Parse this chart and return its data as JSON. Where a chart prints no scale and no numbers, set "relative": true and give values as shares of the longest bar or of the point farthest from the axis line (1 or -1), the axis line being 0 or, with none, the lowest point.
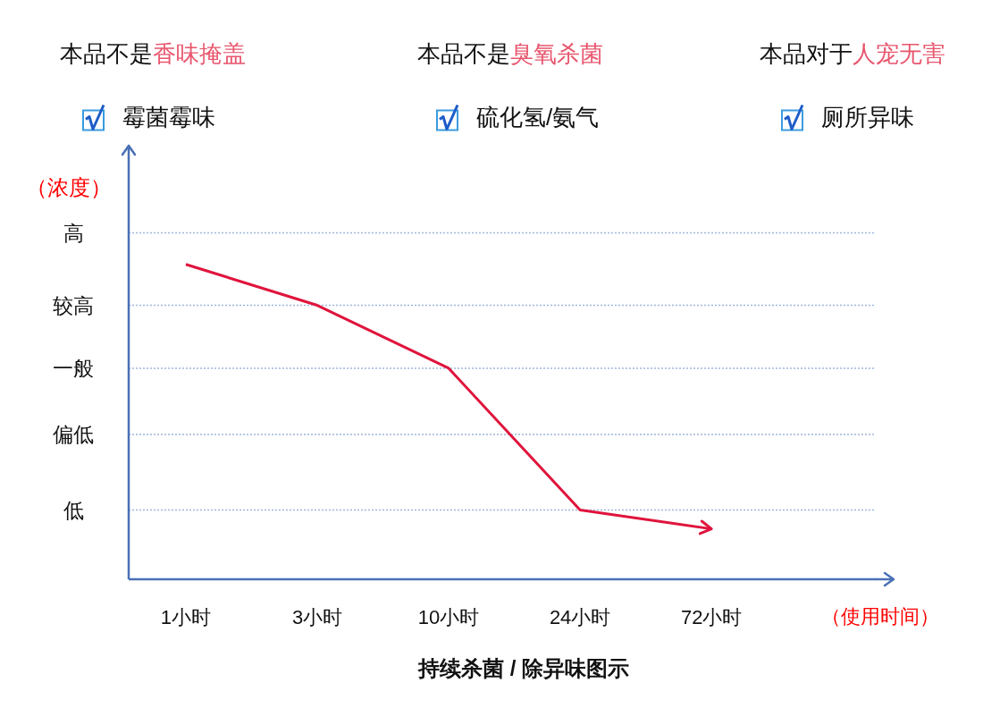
{
  "chart_data": {
    "type": "line",
    "title": "持续杀菌 / 除异味图示",
    "xlabel": "（使用时间）",
    "ylabel": "（浓度）",
    "categories": [
      "1小时",
      "3小时",
      "10小时",
      "24小时",
      "72小时"
    ],
    "series": [
      {
        "color": "#e0143c",
        "values": [
          1,
          0.87,
          0.67,
          0.22,
          0.16
        ]
      }
    ],
    "relative": true,
    "ref_lines": [
      {
        "axis": "y",
        "value": 1.1,
        "label": "高",
        "line_style": "dotted",
        "color": "#9fb6dc"
      },
      {
        "axis": "y",
        "value": 0.87,
        "label": "较高",
        "line_style": "dotted",
        "color": "#9fb6dc"
      },
      {
        "axis": "y",
        "value": 0.67,
        "label": "一般",
        "line_style": "dotted",
        "color": "#9fb6dc"
      },
      {
        "axis": "y",
        "value": 0.46,
        "label": "偏低",
        "line_style": "dotted",
        "color": "#9fb6dc"
      },
      {
        "axis": "y",
        "value": 0.22,
        "label": "低",
        "line_style": "dotted",
        "color": "#9fb6dc"
      }
    ],
    "marker": "none",
    "line_style": "solid",
    "annotations": [
      "本品不是香味掩盖",
      "本品不是臭氧杀菌",
      "本品对于人宠无害",
      "霉菌霉味",
      "硫化氢/氨气",
      "厕所异味"
    ]
  }
}
